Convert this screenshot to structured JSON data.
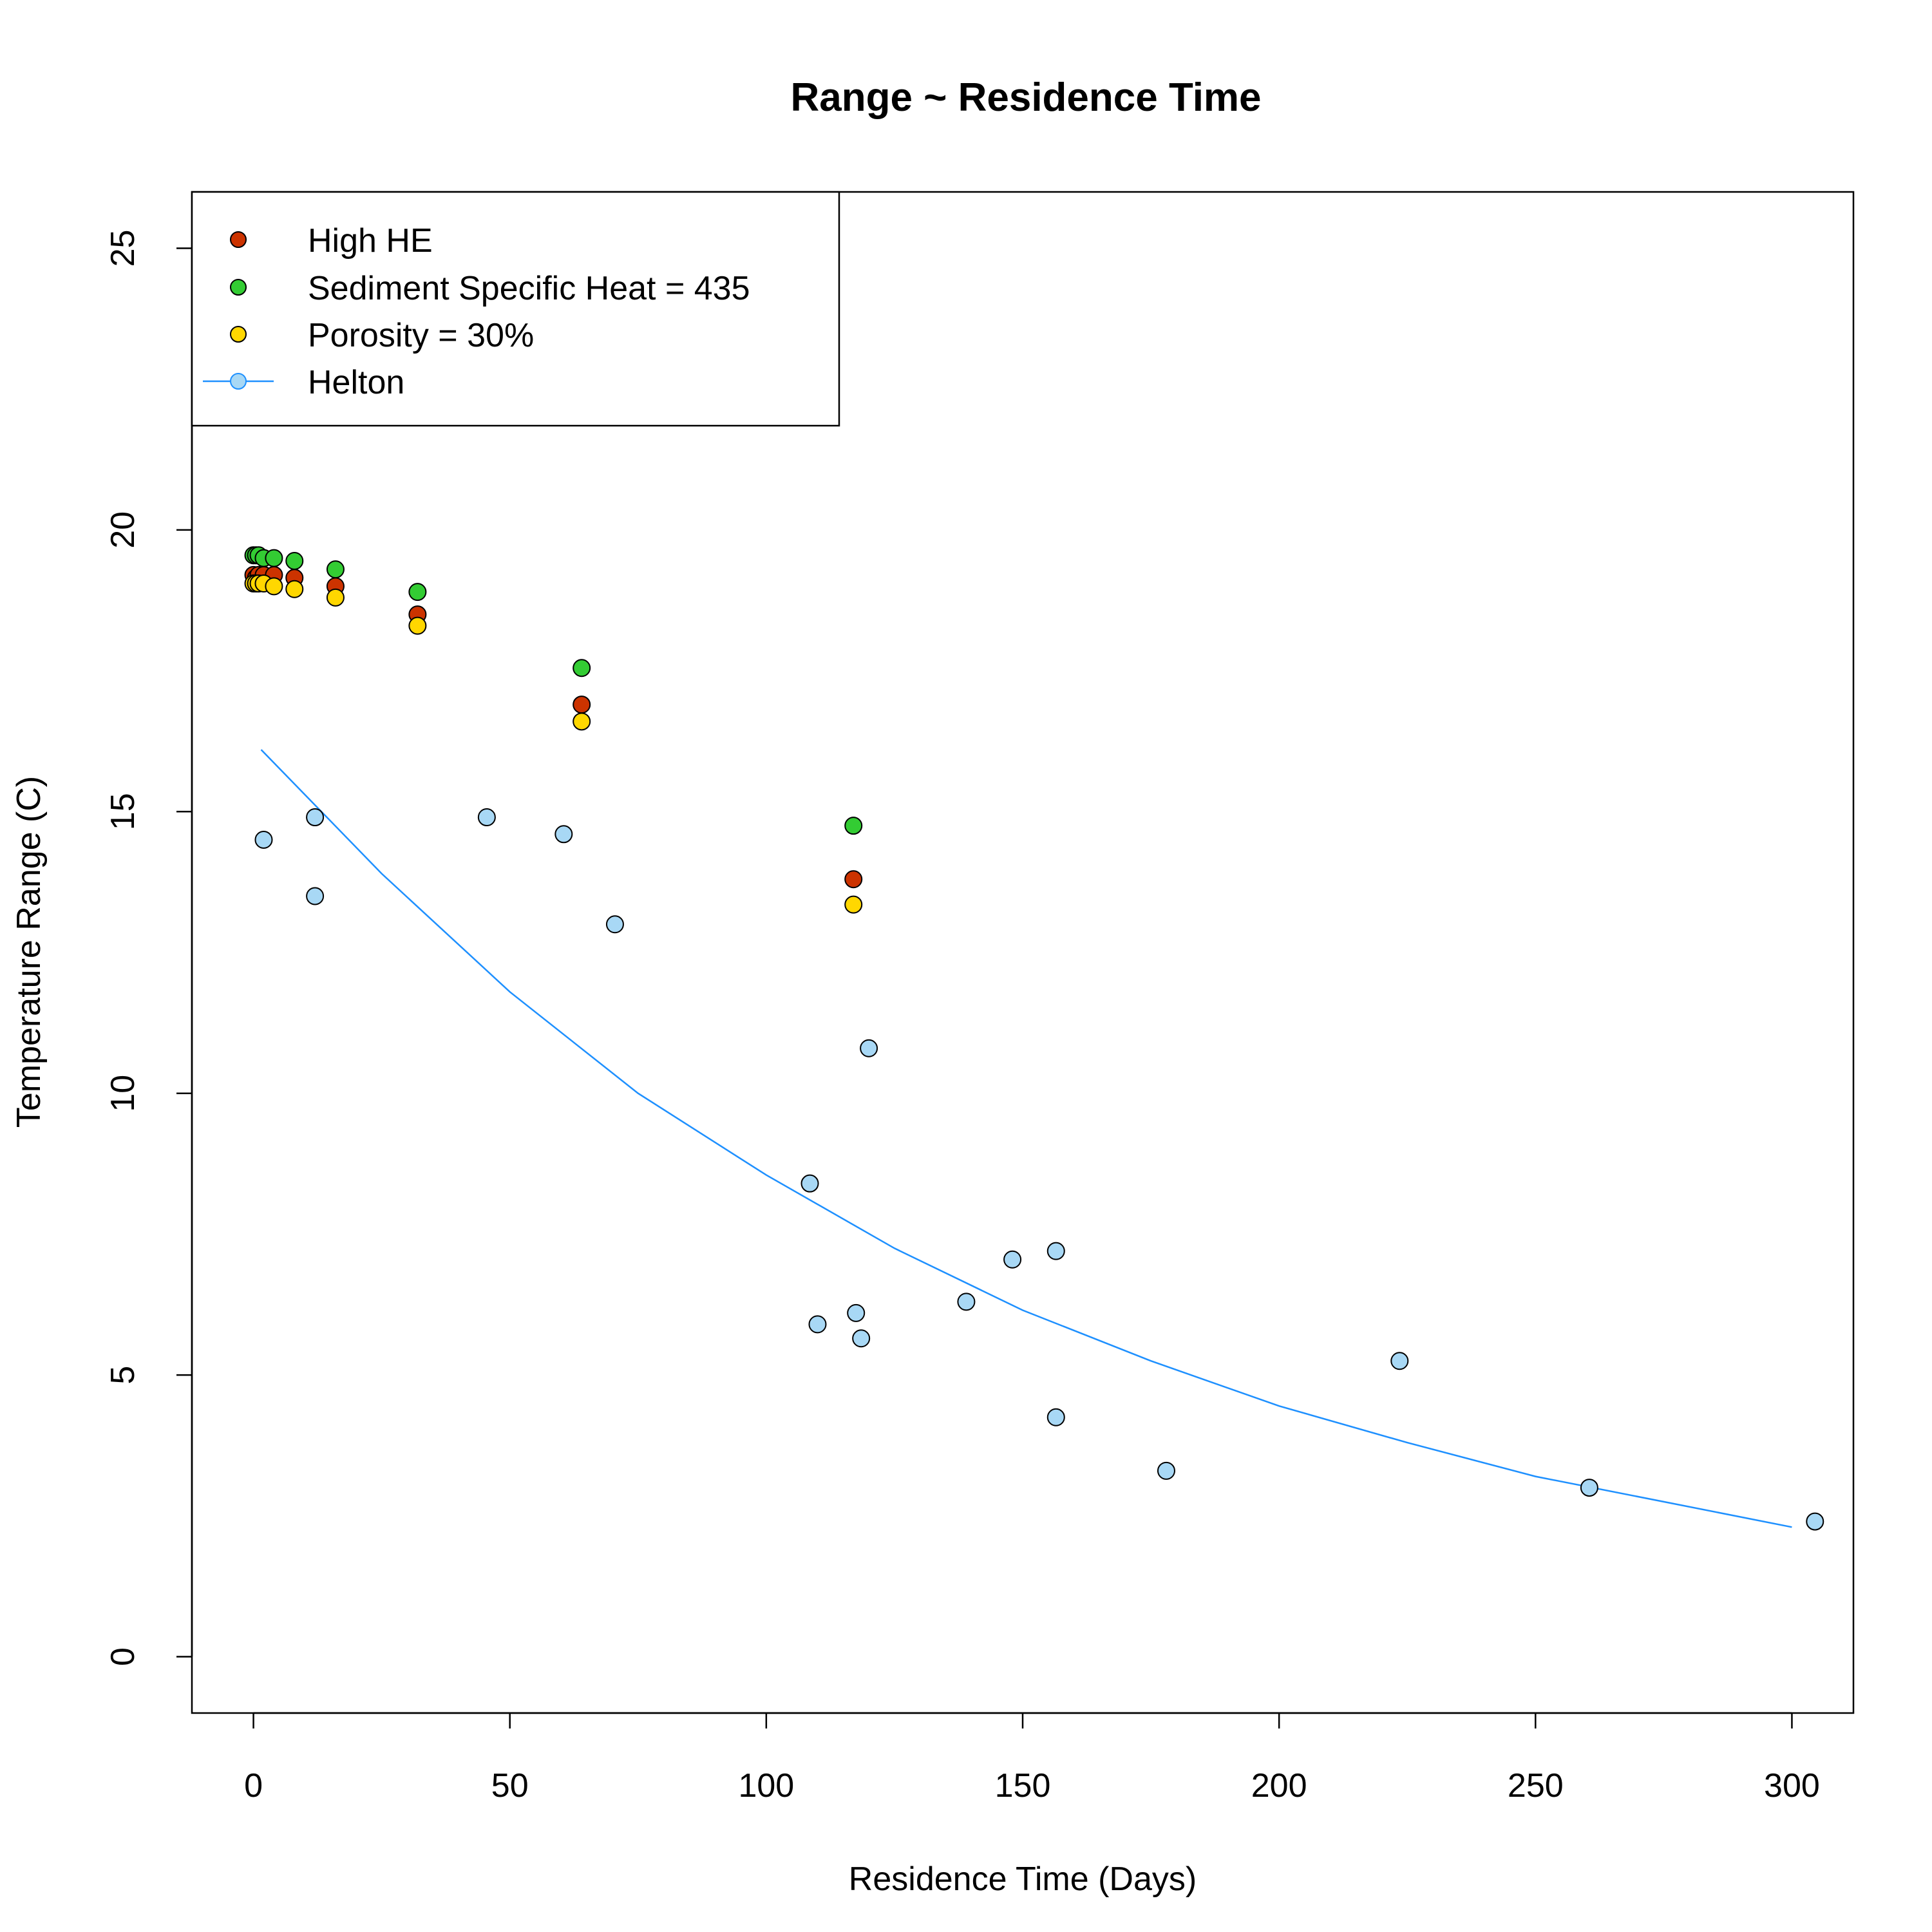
{
  "chart_data": {
    "type": "scatter",
    "title": "Range ~ Residence Time",
    "xlabel": "Residence Time (Days)",
    "ylabel": "Temperature Range (C)",
    "xlim": [
      -12,
      312
    ],
    "ylim": [
      -1,
      26
    ],
    "xticks": [
      0,
      50,
      100,
      150,
      200,
      250,
      300
    ],
    "yticks": [
      0,
      5,
      10,
      15,
      20,
      25
    ],
    "grid": false,
    "legend_position": "top-left",
    "series": [
      {
        "name": "High HE",
        "color": "#cc3300",
        "points": [
          {
            "x": 0,
            "y": 19.2
          },
          {
            "x": 0.5,
            "y": 19.15
          },
          {
            "x": 1,
            "y": 19.2
          },
          {
            "x": 2,
            "y": 19.2
          },
          {
            "x": 4,
            "y": 19.2
          },
          {
            "x": 8,
            "y": 19.15
          },
          {
            "x": 16,
            "y": 19.0
          },
          {
            "x": 32,
            "y": 18.5
          },
          {
            "x": 64,
            "y": 16.9
          },
          {
            "x": 117,
            "y": 13.8
          }
        ]
      },
      {
        "name": "Sediment Specific Heat = 435",
        "color": "#33cc33",
        "points": [
          {
            "x": 0,
            "y": 19.55
          },
          {
            "x": 0.5,
            "y": 19.55
          },
          {
            "x": 1,
            "y": 19.55
          },
          {
            "x": 2,
            "y": 19.5
          },
          {
            "x": 4,
            "y": 19.5
          },
          {
            "x": 8,
            "y": 19.45
          },
          {
            "x": 16,
            "y": 19.3
          },
          {
            "x": 32,
            "y": 18.9
          },
          {
            "x": 64,
            "y": 17.55
          },
          {
            "x": 117,
            "y": 14.75
          }
        ]
      },
      {
        "name": "Porosity = 30%",
        "color": "#ffd700",
        "points": [
          {
            "x": 0,
            "y": 19.05
          },
          {
            "x": 0.5,
            "y": 19.05
          },
          {
            "x": 1,
            "y": 19.05
          },
          {
            "x": 2,
            "y": 19.05
          },
          {
            "x": 4,
            "y": 19.0
          },
          {
            "x": 8,
            "y": 18.95
          },
          {
            "x": 16,
            "y": 18.8
          },
          {
            "x": 32,
            "y": 18.3
          },
          {
            "x": 64,
            "y": 16.6
          },
          {
            "x": 117,
            "y": 13.35
          }
        ]
      },
      {
        "name": "Helton",
        "color": "#a8d8f5",
        "line_color": "#1e90ff",
        "points": [
          {
            "x": 2,
            "y": 14.5
          },
          {
            "x": 12,
            "y": 14.9
          },
          {
            "x": 12,
            "y": 13.5
          },
          {
            "x": 45.5,
            "y": 14.9
          },
          {
            "x": 60.5,
            "y": 14.6
          },
          {
            "x": 70.5,
            "y": 13.0
          },
          {
            "x": 108.5,
            "y": 8.4
          },
          {
            "x": 110,
            "y": 5.9
          },
          {
            "x": 117.5,
            "y": 6.1
          },
          {
            "x": 118.5,
            "y": 5.65
          },
          {
            "x": 120,
            "y": 10.8
          },
          {
            "x": 139,
            "y": 6.3
          },
          {
            "x": 148,
            "y": 7.05
          },
          {
            "x": 156.5,
            "y": 7.2
          },
          {
            "x": 156.5,
            "y": 4.25
          },
          {
            "x": 178,
            "y": 3.3
          },
          {
            "x": 223.5,
            "y": 5.25
          },
          {
            "x": 260.5,
            "y": 3.0
          },
          {
            "x": 304.5,
            "y": 2.4
          }
        ],
        "fit_curve": [
          {
            "x": 1.5,
            "y": 16.1
          },
          {
            "x": 25,
            "y": 13.9
          },
          {
            "x": 50,
            "y": 11.8
          },
          {
            "x": 75,
            "y": 10.0
          },
          {
            "x": 100,
            "y": 8.55
          },
          {
            "x": 125,
            "y": 7.25
          },
          {
            "x": 150,
            "y": 6.15
          },
          {
            "x": 175,
            "y": 5.25
          },
          {
            "x": 200,
            "y": 4.45
          },
          {
            "x": 225,
            "y": 3.8
          },
          {
            "x": 250,
            "y": 3.2
          },
          {
            "x": 275,
            "y": 2.75
          },
          {
            "x": 300,
            "y": 2.3
          }
        ]
      }
    ]
  }
}
